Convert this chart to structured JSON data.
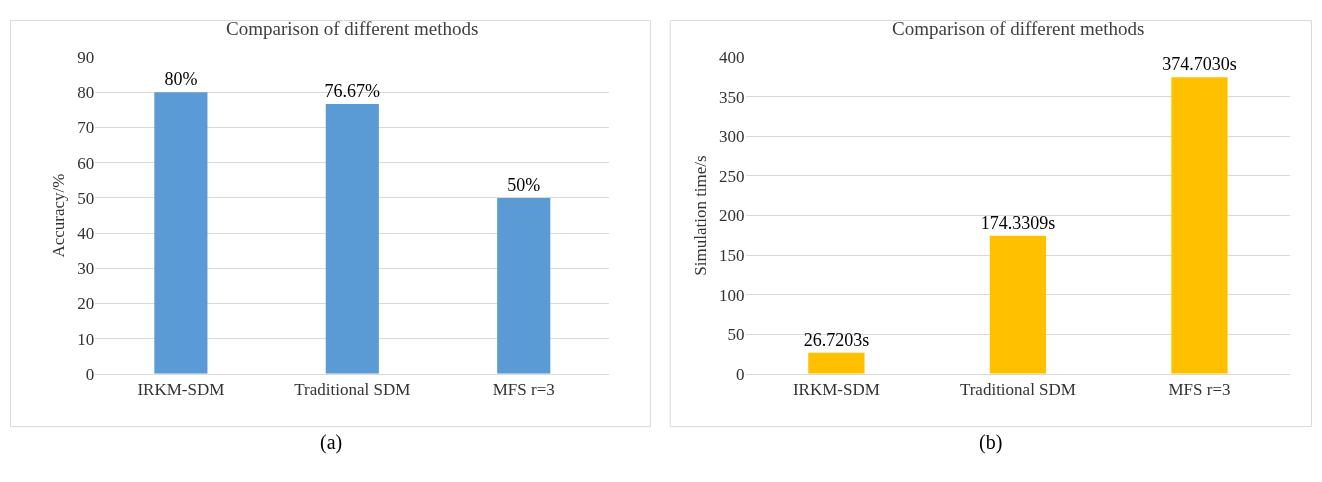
{
  "chart_data": [
    {
      "type": "bar",
      "title": "Comparison of different methods",
      "ylabel": "Accuracy/%",
      "categories": [
        "IRKM-SDM",
        "Traditional SDM",
        "MFS r=3"
      ],
      "series": [
        {
          "color": "#5b9bd5",
          "values": [
            80,
            76.67,
            50
          ],
          "value_labels": [
            "80%",
            "76.67%",
            "50%"
          ]
        }
      ],
      "ylim": [
        0,
        90
      ],
      "yticks": [
        0,
        10,
        20,
        30,
        40,
        50,
        60,
        70,
        80,
        90
      ],
      "grid": "y",
      "annotations": [
        "(a)"
      ]
    },
    {
      "type": "bar",
      "title": "Comparison of different methods",
      "ylabel": "Simulation time/s",
      "categories": [
        "IRKM-SDM",
        "Traditional SDM",
        "MFS r=3"
      ],
      "series": [
        {
          "color": "#ffc000",
          "values": [
            26.7203,
            174.3309,
            374.703
          ],
          "value_labels": [
            "26.7203s",
            "174.3309s",
            "374.7030s"
          ]
        }
      ],
      "ylim": [
        0,
        400
      ],
      "yticks": [
        0,
        50,
        100,
        150,
        200,
        250,
        300,
        350,
        400
      ],
      "grid": "y",
      "annotations": [
        "(b)"
      ]
    }
  ]
}
